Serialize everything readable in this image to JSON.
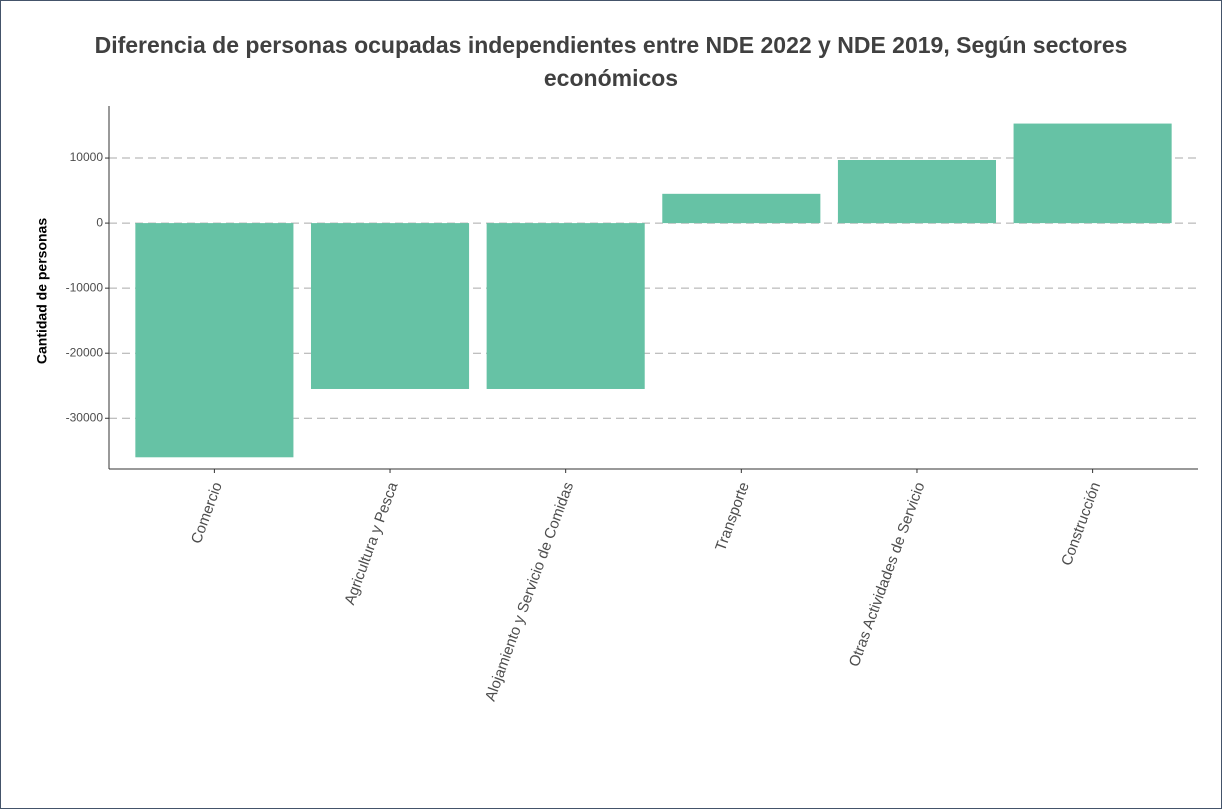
{
  "chart_data": {
    "type": "bar",
    "title": "Diferencia de personas ocupadas independientes entre NDE 2022 y NDE 2019, Según sectores económicos",
    "y_label": "Cantidad de personas",
    "categories": [
      "Comercio",
      "Agricultura y Pesca",
      "Alojamiento y Servicio de Comidas",
      "Transporte",
      "Otras Actividades de Servicio",
      "Construcción"
    ],
    "values": [
      -36000,
      -25500,
      -25500,
      4500,
      9700,
      15300
    ],
    "color": "#66c2a5",
    "ylim": [
      -37800,
      18000
    ],
    "yticks": [
      -30000,
      -20000,
      -10000,
      0,
      10000
    ],
    "grid": true
  }
}
